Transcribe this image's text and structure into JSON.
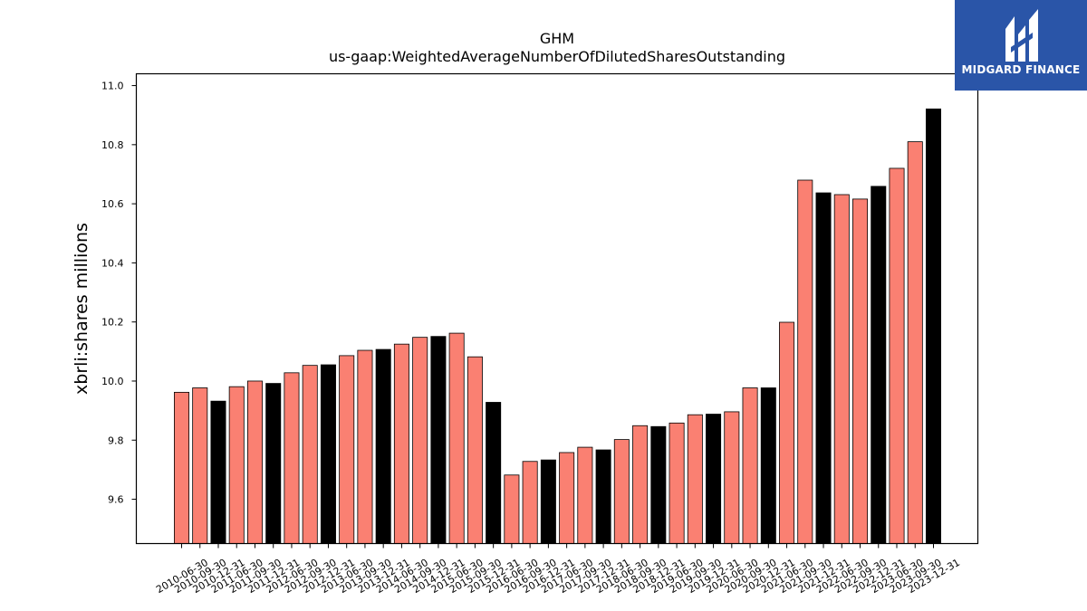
{
  "chart_data": {
    "type": "bar",
    "title": "GHM",
    "subtitle": "us-gaap:WeightedAverageNumberOfDilutedSharesOutstanding",
    "xlabel": "",
    "ylabel": "xbrli:shares millions",
    "ylim": [
      9.45,
      11.04
    ],
    "yticks": [
      "9.6",
      "9.8",
      "10.0",
      "10.2",
      "10.4",
      "10.6",
      "10.8",
      "11.0"
    ],
    "grid": false,
    "colors": {
      "quarter": "#fa8072",
      "year_end": "#000000",
      "edge": "#000000"
    },
    "categories": [
      "2010-06-30",
      "2010-09-30",
      "2010-12-31",
      "2011-06-30",
      "2011-09-30",
      "2011-12-31",
      "2012-06-30",
      "2012-09-30",
      "2012-12-31",
      "2013-06-30",
      "2013-09-30",
      "2013-12-31",
      "2014-06-30",
      "2014-09-30",
      "2014-12-31",
      "2015-06-30",
      "2015-09-30",
      "2015-12-31",
      "2016-06-30",
      "2016-09-30",
      "2016-12-31",
      "2017-06-30",
      "2017-09-30",
      "2017-12-31",
      "2018-06-30",
      "2018-09-30",
      "2018-12-31",
      "2019-06-30",
      "2019-09-30",
      "2019-12-31",
      "2020-06-30",
      "2020-09-30",
      "2020-12-31",
      "2021-06-30",
      "2021-09-30",
      "2021-12-31",
      "2022-06-30",
      "2022-09-30",
      "2022-12-31",
      "2023-06-30",
      "2023-09-30",
      "2023-12-31"
    ],
    "values": [
      9.962,
      9.977,
      9.932,
      9.981,
      10.0,
      9.992,
      10.028,
      10.053,
      10.055,
      10.086,
      10.104,
      10.107,
      10.125,
      10.148,
      10.151,
      10.162,
      10.082,
      9.928,
      9.682,
      9.728,
      9.733,
      9.758,
      9.776,
      9.767,
      9.802,
      9.849,
      9.846,
      9.858,
      9.886,
      9.888,
      9.896,
      9.977,
      9.977,
      10.199,
      10.68,
      10.637,
      10.631,
      10.616,
      10.659,
      10.72,
      10.81,
      10.921
    ],
    "year_end_flags": [
      false,
      false,
      true,
      false,
      false,
      true,
      false,
      false,
      true,
      false,
      false,
      true,
      false,
      false,
      true,
      false,
      false,
      true,
      false,
      false,
      true,
      false,
      false,
      true,
      false,
      false,
      true,
      false,
      false,
      true,
      false,
      false,
      true,
      false,
      false,
      true,
      false,
      false,
      true,
      false,
      false,
      true
    ]
  },
  "logo": {
    "text": "MIDGARD FINANCE",
    "background": "#2a55a8"
  }
}
